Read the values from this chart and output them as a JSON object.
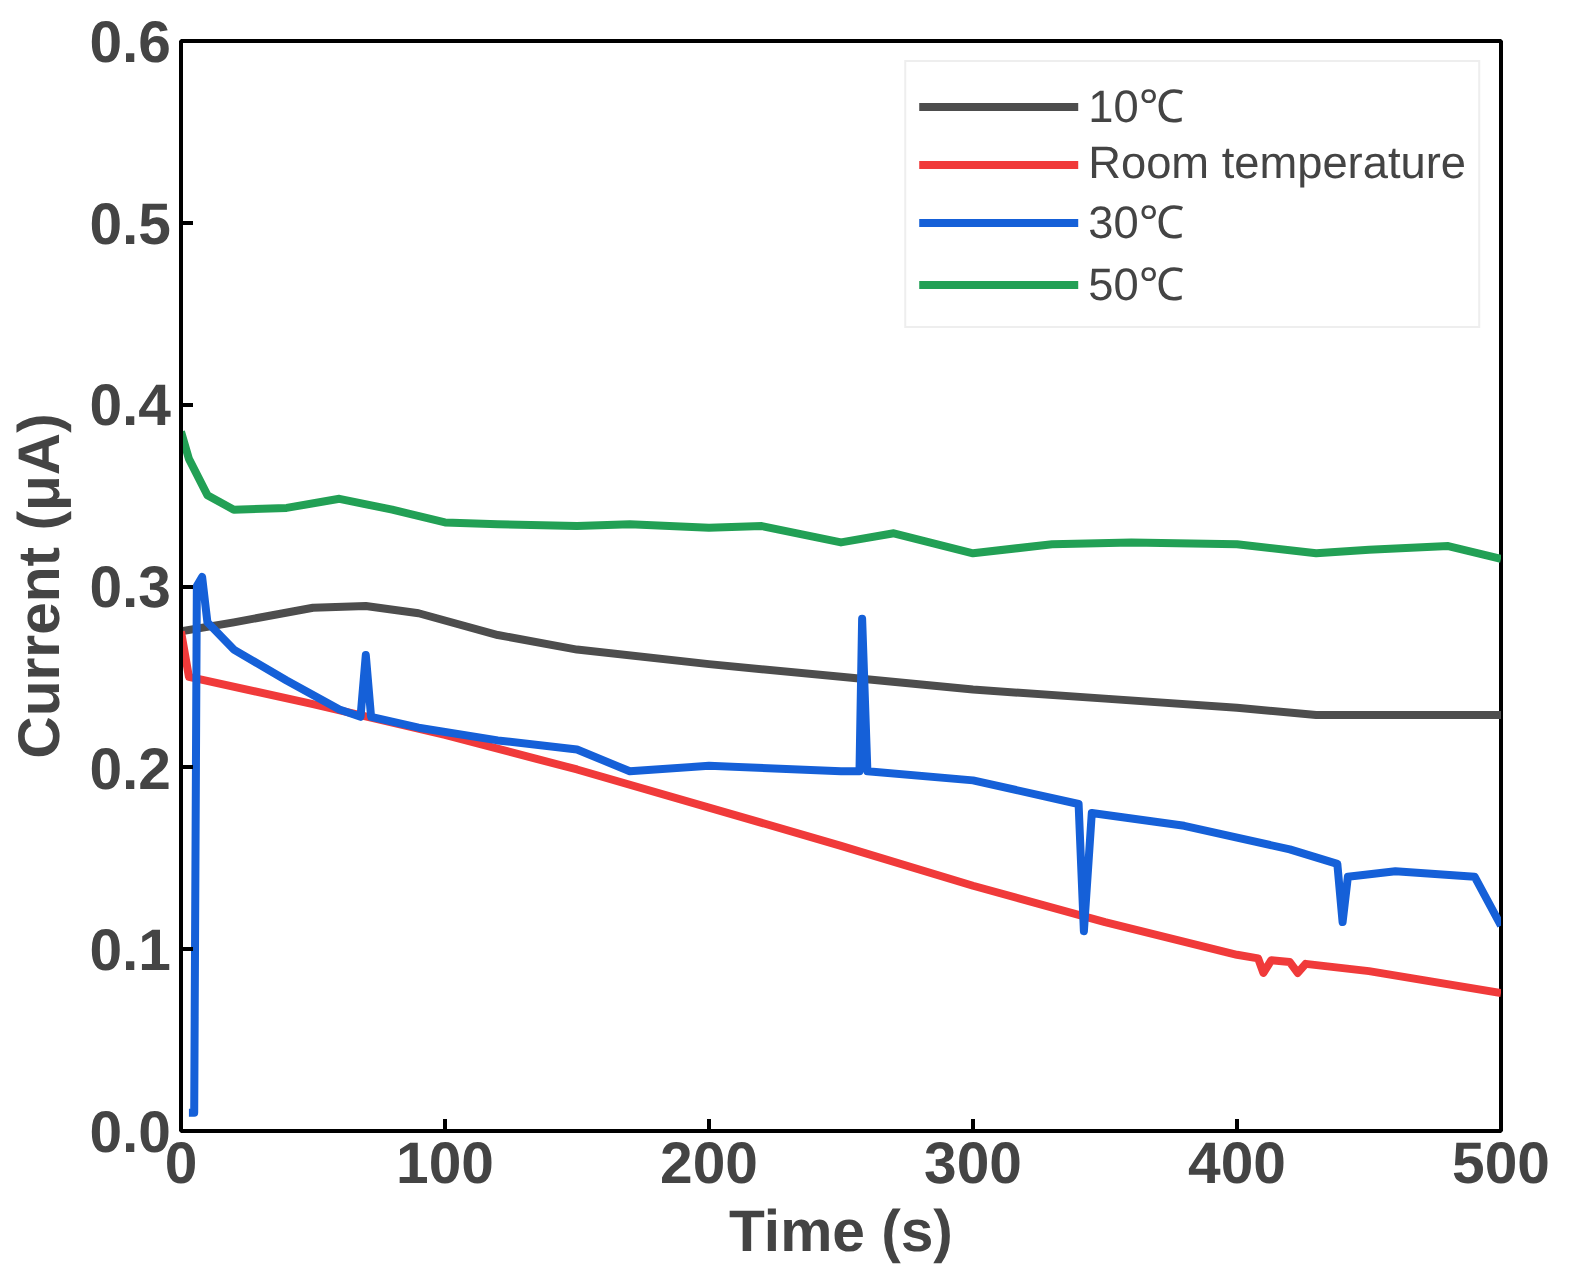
{
  "chart_data": {
    "type": "line",
    "xlabel": "Time (s)",
    "ylabel": "Current (μA)",
    "xlim": [
      0,
      500
    ],
    "ylim": [
      0,
      0.6
    ],
    "xticks": [
      0,
      100,
      200,
      300,
      400,
      500
    ],
    "yticks": [
      {
        "value": 0,
        "label": "0.0"
      },
      0.1,
      0.2,
      0.3,
      0.4,
      0.5,
      0.6
    ],
    "grid": false,
    "legend": "top right",
    "line_style": "solid",
    "marker": "none",
    "series": [
      {
        "name": "10℃",
        "color": "#4d4d4d",
        "x": [
          0,
          20,
          50,
          70,
          90,
          120,
          150,
          200,
          250,
          300,
          350,
          400,
          430,
          470,
          500
        ],
        "values": [
          0.275,
          0.28,
          0.288,
          0.289,
          0.285,
          0.273,
          0.265,
          0.257,
          0.25,
          0.243,
          0.238,
          0.233,
          0.229,
          0.229,
          0.229
        ]
      },
      {
        "name": "Room temperature",
        "color": "#f03a3a",
        "x": [
          0,
          3,
          50,
          100,
          150,
          200,
          250,
          300,
          350,
          400,
          408,
          410,
          413,
          420,
          423,
          426,
          450,
          500
        ],
        "values": [
          0.275,
          0.25,
          0.235,
          0.218,
          0.199,
          0.178,
          0.157,
          0.135,
          0.115,
          0.097,
          0.095,
          0.087,
          0.094,
          0.093,
          0.087,
          0.092,
          0.088,
          0.076
        ]
      },
      {
        "name": "30℃",
        "color": "#1560d8",
        "x": [
          3,
          5,
          6,
          8,
          10,
          20,
          40,
          60,
          68,
          70,
          72,
          90,
          120,
          150,
          170,
          200,
          250,
          257,
          258,
          260,
          300,
          340,
          342,
          345,
          380,
          420,
          438,
          440,
          442,
          460,
          490,
          500
        ],
        "values": [
          0.01,
          0.01,
          0.3,
          0.305,
          0.28,
          0.265,
          0.248,
          0.232,
          0.228,
          0.262,
          0.228,
          0.222,
          0.215,
          0.21,
          0.198,
          0.201,
          0.198,
          0.198,
          0.282,
          0.198,
          0.193,
          0.18,
          0.11,
          0.175,
          0.168,
          0.155,
          0.147,
          0.115,
          0.14,
          0.143,
          0.14,
          0.113
        ]
      },
      {
        "name": "50℃",
        "color": "#22a055",
        "x": [
          0,
          3,
          10,
          20,
          40,
          60,
          80,
          100,
          120,
          150,
          170,
          200,
          220,
          250,
          270,
          300,
          330,
          360,
          400,
          430,
          450,
          480,
          500
        ],
        "values": [
          0.385,
          0.37,
          0.35,
          0.342,
          0.343,
          0.348,
          0.342,
          0.335,
          0.334,
          0.333,
          0.334,
          0.332,
          0.333,
          0.324,
          0.329,
          0.318,
          0.323,
          0.324,
          0.323,
          0.318,
          0.32,
          0.322,
          0.315
        ]
      }
    ]
  }
}
